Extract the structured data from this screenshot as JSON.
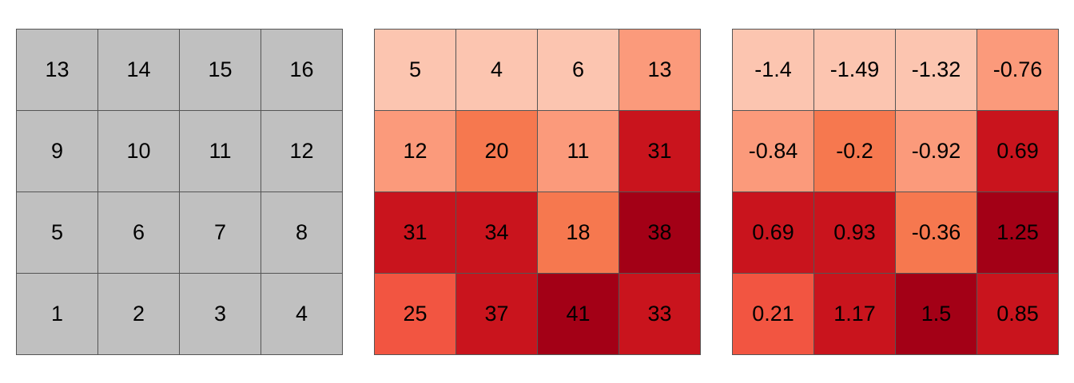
{
  "chart_data": [
    {
      "type": "heatmap",
      "rows": 4,
      "cols": 4,
      "cell_color": "#c0c0c0",
      "values": [
        [
          13,
          14,
          15,
          16
        ],
        [
          9,
          10,
          11,
          12
        ],
        [
          5,
          6,
          7,
          8
        ],
        [
          1,
          2,
          3,
          4
        ]
      ],
      "labels": [
        [
          "13",
          "14",
          "15",
          "16"
        ],
        [
          "9",
          "10",
          "11",
          "12"
        ],
        [
          "5",
          "6",
          "7",
          "8"
        ],
        [
          "1",
          "2",
          "3",
          "4"
        ]
      ]
    },
    {
      "type": "heatmap",
      "rows": 4,
      "cols": 4,
      "colormap": "Reds",
      "values": [
        [
          5,
          4,
          6,
          13
        ],
        [
          12,
          20,
          11,
          31
        ],
        [
          31,
          34,
          18,
          38
        ],
        [
          25,
          37,
          41,
          33
        ]
      ],
      "labels": [
        [
          "5",
          "4",
          "6",
          "13"
        ],
        [
          "12",
          "20",
          "11",
          "31"
        ],
        [
          "31",
          "34",
          "18",
          "38"
        ],
        [
          "25",
          "37",
          "41",
          "33"
        ]
      ]
    },
    {
      "type": "heatmap",
      "rows": 4,
      "cols": 4,
      "colormap": "Reds",
      "values": [
        [
          -1.4,
          -1.49,
          -1.32,
          -0.76
        ],
        [
          -0.84,
          -0.2,
          -0.92,
          0.69
        ],
        [
          0.69,
          0.93,
          -0.36,
          1.25
        ],
        [
          0.21,
          1.17,
          1.5,
          0.85
        ]
      ],
      "labels": [
        [
          "-1.4",
          "-1.49",
          "-1.32",
          "-0.76"
        ],
        [
          "-0.84",
          "-0.2",
          "-0.92",
          "0.69"
        ],
        [
          "0.69",
          "0.93",
          "-0.36",
          "1.25"
        ],
        [
          "0.21",
          "1.17",
          "1.5",
          "0.85"
        ]
      ]
    }
  ],
  "colors": {
    "reds_palette": [
      "#fcc5b0",
      "#fb9a7b",
      "#f6784f",
      "#f25541",
      "#c9141d",
      "#a30016"
    ],
    "cell_border": "#555555"
  }
}
